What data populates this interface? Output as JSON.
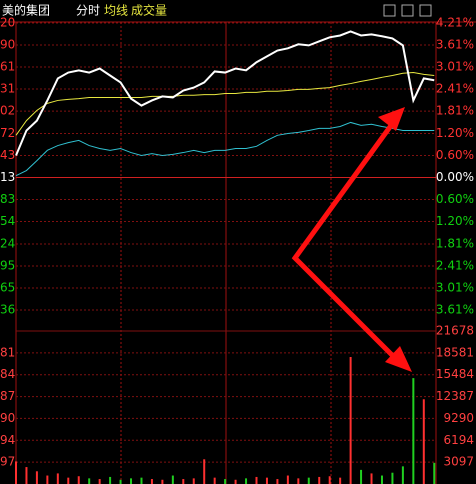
{
  "header": {
    "stock": "美的集团",
    "mode": "分时",
    "avg_label": "均线",
    "volume_label": "成交量"
  },
  "chart_data": {
    "type": "intraday",
    "x": [
      0,
      6,
      12,
      18,
      24,
      30,
      36,
      42,
      48,
      54,
      60,
      66,
      72,
      78,
      84,
      90,
      96,
      102,
      108,
      114,
      120,
      126,
      132,
      138,
      144,
      150,
      156,
      162,
      168,
      174,
      180,
      186,
      192,
      198,
      204,
      210,
      216,
      222,
      228,
      234,
      240
    ],
    "xlim": [
      0,
      241
    ],
    "series": [
      {
        "color": "#ffffff",
        "values": [
          0.6,
          1.28,
          1.55,
          2.1,
          2.7,
          2.86,
          2.92,
          2.86,
          2.97,
          2.78,
          2.59,
          2.15,
          1.96,
          2.1,
          2.21,
          2.18,
          2.37,
          2.45,
          2.59,
          2.89,
          2.86,
          2.97,
          2.92,
          3.14,
          3.3,
          3.46,
          3.52,
          3.63,
          3.6,
          3.71,
          3.82,
          3.87,
          3.98,
          3.87,
          3.9,
          3.85,
          3.79,
          3.6,
          2.1,
          2.7,
          2.65
        ]
      },
      {
        "name": "均线",
        "color": "#e8e840",
        "values": [
          1.15,
          1.55,
          1.83,
          2.02,
          2.1,
          2.13,
          2.15,
          2.18,
          2.18,
          2.18,
          2.18,
          2.18,
          2.18,
          2.21,
          2.21,
          2.21,
          2.24,
          2.24,
          2.26,
          2.26,
          2.29,
          2.29,
          2.32,
          2.32,
          2.35,
          2.35,
          2.37,
          2.4,
          2.4,
          2.43,
          2.45,
          2.51,
          2.56,
          2.62,
          2.67,
          2.73,
          2.78,
          2.84,
          2.86,
          2.81,
          2.78
        ]
      },
      {
        "color": "#30c0d0",
        "values": [
          0.05,
          0.19,
          0.46,
          0.74,
          0.87,
          0.95,
          1.01,
          0.87,
          0.79,
          0.74,
          0.79,
          0.68,
          0.6,
          0.65,
          0.6,
          0.63,
          0.68,
          0.74,
          0.68,
          0.74,
          0.74,
          0.79,
          0.79,
          0.85,
          1.01,
          1.15,
          1.2,
          1.23,
          1.28,
          1.34,
          1.34,
          1.39,
          1.5,
          1.42,
          1.45,
          1.39,
          1.34,
          1.28,
          1.28,
          1.28,
          1.28
        ]
      }
    ],
    "ylim": [
      -3.61,
      4.21
    ],
    "yticks": [
      {
        "value": 4.21,
        "label": "4.21%"
      },
      {
        "value": 3.61,
        "label": "3.61%"
      },
      {
        "value": 3.01,
        "label": "3.01%"
      },
      {
        "value": 2.41,
        "label": "2.41%"
      },
      {
        "value": 1.81,
        "label": "1.81%"
      },
      {
        "value": 1.2,
        "label": "1.20%"
      },
      {
        "value": 0.6,
        "label": "0.60%"
      },
      {
        "value": 0,
        "label": "0.00%"
      },
      {
        "value": -0.6,
        "label": "0.60%"
      },
      {
        "value": -1.2,
        "label": "1.20%"
      },
      {
        "value": -1.81,
        "label": "1.81%"
      },
      {
        "value": -2.41,
        "label": "2.41%"
      },
      {
        "value": -3.01,
        "label": "3.01%"
      },
      {
        "value": -3.61,
        "label": "3.61%"
      }
    ],
    "left_labels": [
      "20",
      "90",
      "61",
      "31",
      "02",
      "72",
      "43",
      "13",
      "83",
      "54",
      "24",
      "95",
      "65",
      "36"
    ],
    "volume": {
      "values": [
        3200,
        2400,
        1800,
        1200,
        1500,
        900,
        1100,
        800,
        700,
        1000,
        600,
        800,
        900,
        700,
        600,
        1200,
        700,
        800,
        3500,
        900,
        700,
        600,
        800,
        1000,
        900,
        700,
        1200,
        800,
        900,
        1000,
        1100,
        900,
        18000,
        2000,
        1500,
        1200,
        1600,
        2500,
        15000,
        12000,
        3000
      ],
      "ylim": [
        0,
        21678
      ],
      "yticks": [
        21678,
        18581,
        15484,
        12387,
        9290,
        6194,
        3097
      ],
      "left_labels": [
        "",
        "81",
        "84",
        "87",
        "90",
        "94",
        "97"
      ],
      "up_color": "#ff3030",
      "down_color": "#20d020"
    },
    "up_color": "#ff3232",
    "down_color": "#10d010",
    "flat_color": "#ffffff",
    "grid": true
  }
}
